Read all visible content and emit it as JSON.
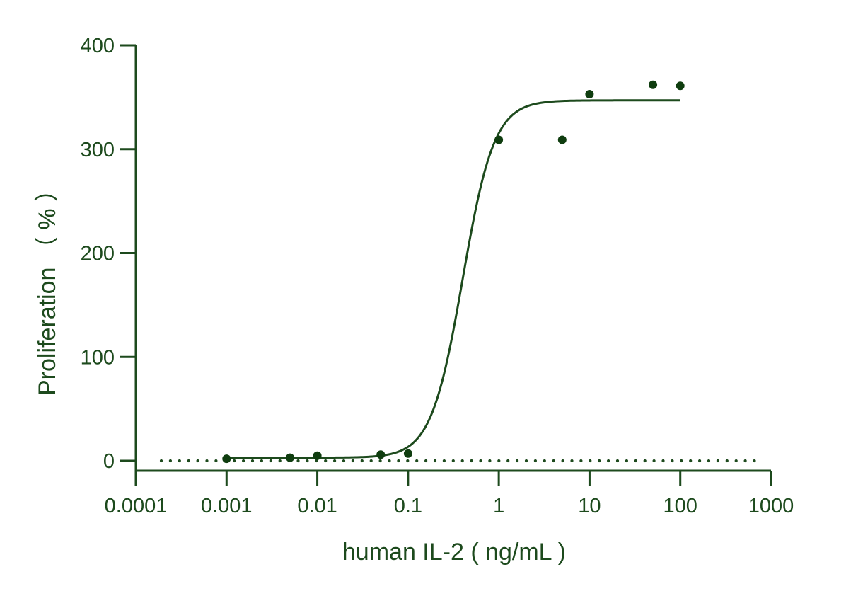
{
  "chart_data": {
    "type": "scatter",
    "xlabel": "human IL-2 ( ng/mL )",
    "ylabel": "Proliferation （ % ）",
    "x_scale": "log",
    "xlim": [
      0.0001,
      1000
    ],
    "ylim": [
      -10,
      400
    ],
    "x_ticks": [
      {
        "value": 0.0001,
        "label": "0.0001"
      },
      {
        "value": 0.001,
        "label": "0.001"
      },
      {
        "value": 0.01,
        "label": "0.01"
      },
      {
        "value": 0.1,
        "label": "0.1"
      },
      {
        "value": 1,
        "label": "1"
      },
      {
        "value": 10,
        "label": "10"
      },
      {
        "value": 100,
        "label": "100"
      },
      {
        "value": 1000,
        "label": "1000"
      }
    ],
    "y_ticks": [
      {
        "value": 0,
        "label": "0"
      },
      {
        "value": 100,
        "label": "100"
      },
      {
        "value": 200,
        "label": "200"
      },
      {
        "value": 300,
        "label": "300"
      },
      {
        "value": 400,
        "label": "400"
      }
    ],
    "series": [
      {
        "points": [
          {
            "x": 0.001,
            "y": 2
          },
          {
            "x": 0.005,
            "y": 3
          },
          {
            "x": 0.01,
            "y": 5
          },
          {
            "x": 0.05,
            "y": 6
          },
          {
            "x": 0.1,
            "y": 7
          },
          {
            "x": 1,
            "y": 309
          },
          {
            "x": 5,
            "y": 309
          },
          {
            "x": 10,
            "y": 353
          },
          {
            "x": 50,
            "y": 362
          },
          {
            "x": 100,
            "y": 361
          }
        ],
        "fit": {
          "model": "four-parameter logistic",
          "bottom": 3,
          "top": 347,
          "ec50": 0.4,
          "hill_slope": 2.5,
          "x_range": [
            0.001,
            100
          ]
        }
      }
    ],
    "reference_line": {
      "y": 0,
      "style": "dotted",
      "x_range": [
        0.0001,
        1000
      ]
    },
    "grid": false,
    "legend": "none",
    "colors": {
      "axis": "#1d4a1d",
      "series": "#0f3d0f"
    }
  }
}
